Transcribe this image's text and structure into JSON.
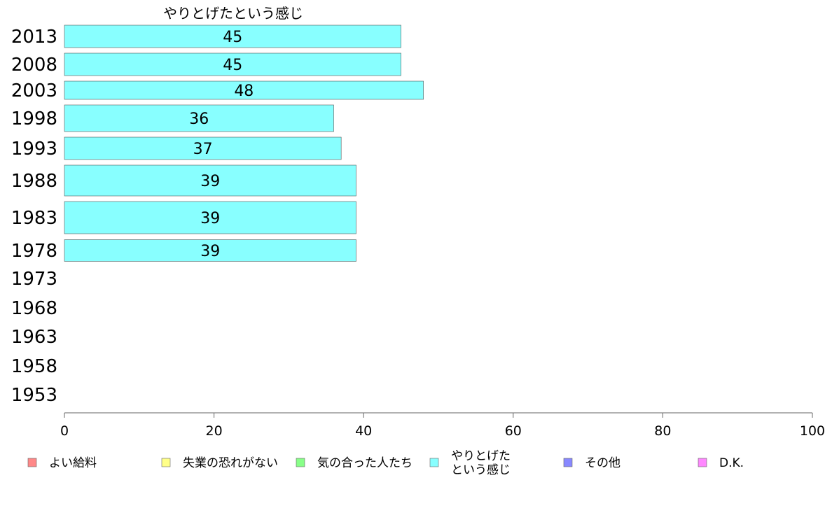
{
  "chart_data": {
    "type": "bar",
    "orientation": "horizontal",
    "title": "やりとげたという感じ",
    "categories": [
      "2013",
      "2008",
      "2003",
      "1998",
      "1993",
      "1988",
      "1983",
      "1978",
      "1973",
      "1968",
      "1963",
      "1958",
      "1953"
    ],
    "series": [
      {
        "name": "やりとげたという感じ",
        "values": [
          45,
          45,
          48,
          36,
          37,
          39,
          39,
          39,
          null,
          null,
          null,
          null,
          null
        ]
      }
    ],
    "data_labels": [
      "45",
      "45",
      "48",
      "36",
      "37",
      "39",
      "39",
      "39",
      "",
      "",
      "",
      "",
      ""
    ],
    "xlim": [
      0,
      100
    ],
    "xticks": [
      0,
      20,
      40,
      60,
      80,
      100
    ],
    "grid": false,
    "legend": {
      "placement": "bottom",
      "entries": [
        {
          "label": "よい給料",
          "color": "#ff8888"
        },
        {
          "label": "失業の恐れがない",
          "color": "#ffff88"
        },
        {
          "label": "気の合った人たち",
          "color": "#88ff88"
        },
        {
          "label": "やりとげた\nという感じ",
          "lines": [
            "やりとげた",
            "という感じ"
          ],
          "color": "#88ffff"
        },
        {
          "label": "その他",
          "color": "#8888ff"
        },
        {
          "label": "D.K.",
          "color": "#ff88ff"
        }
      ]
    },
    "bar_color": "#88ffff"
  }
}
